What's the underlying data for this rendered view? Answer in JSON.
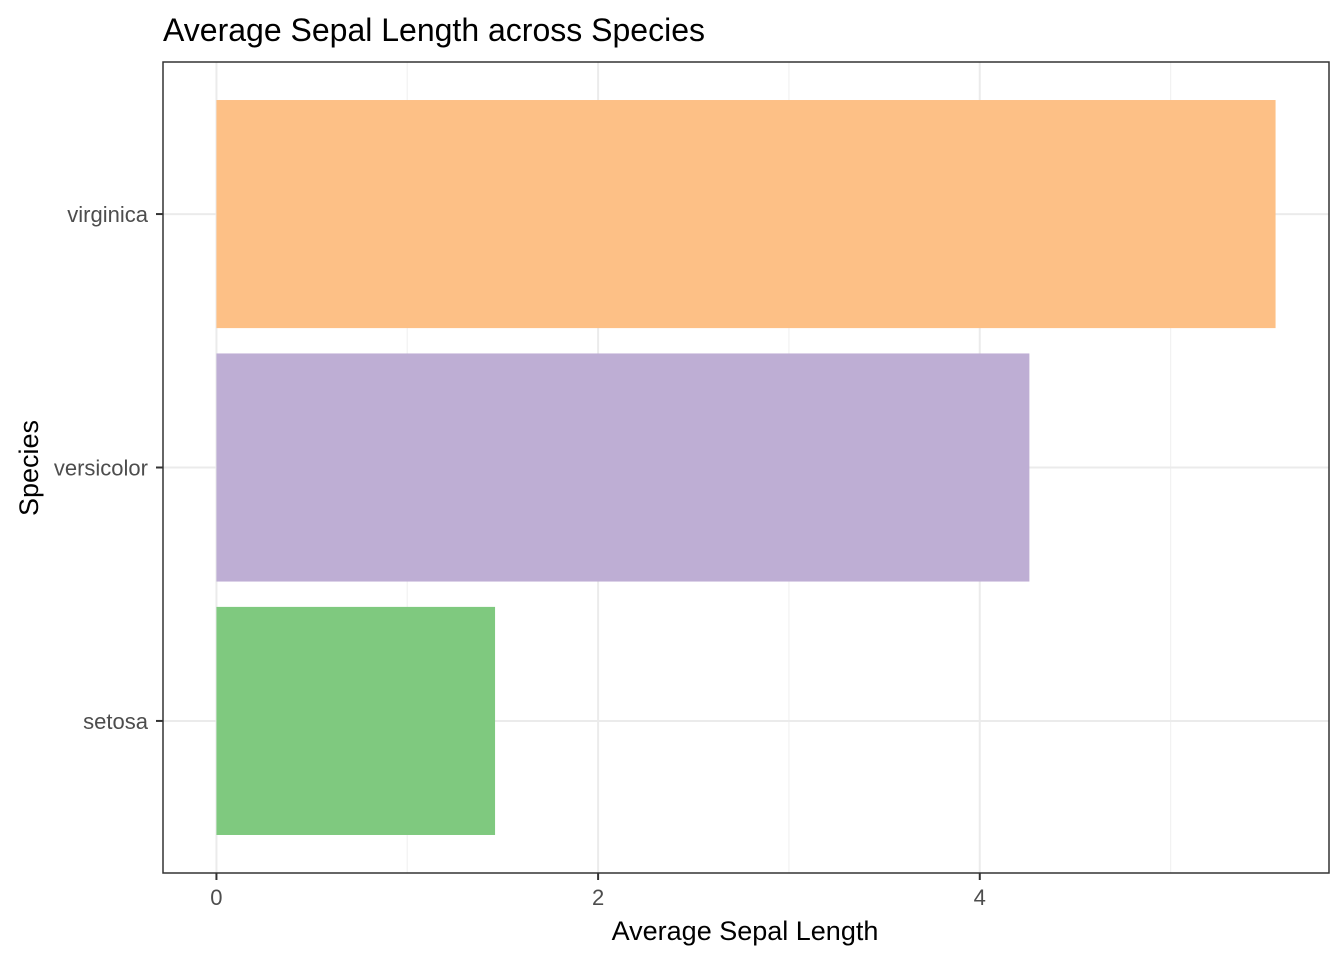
{
  "chart_data": {
    "type": "bar",
    "orientation": "horizontal",
    "title": "Average Sepal Length across Species",
    "xlabel": "Average Sepal Length",
    "ylabel": "Species",
    "categories": [
      "setosa",
      "versicolor",
      "virginica"
    ],
    "values": [
      1.46,
      4.26,
      5.55
    ],
    "colors": [
      "#7fc97f",
      "#beaed4",
      "#fdc086"
    ],
    "xlim": [
      -0.28,
      5.83
    ],
    "xticks": [
      0,
      2,
      4
    ],
    "xtick_labels": [
      "0",
      "2",
      "4"
    ],
    "grid": true,
    "legend": "none"
  }
}
